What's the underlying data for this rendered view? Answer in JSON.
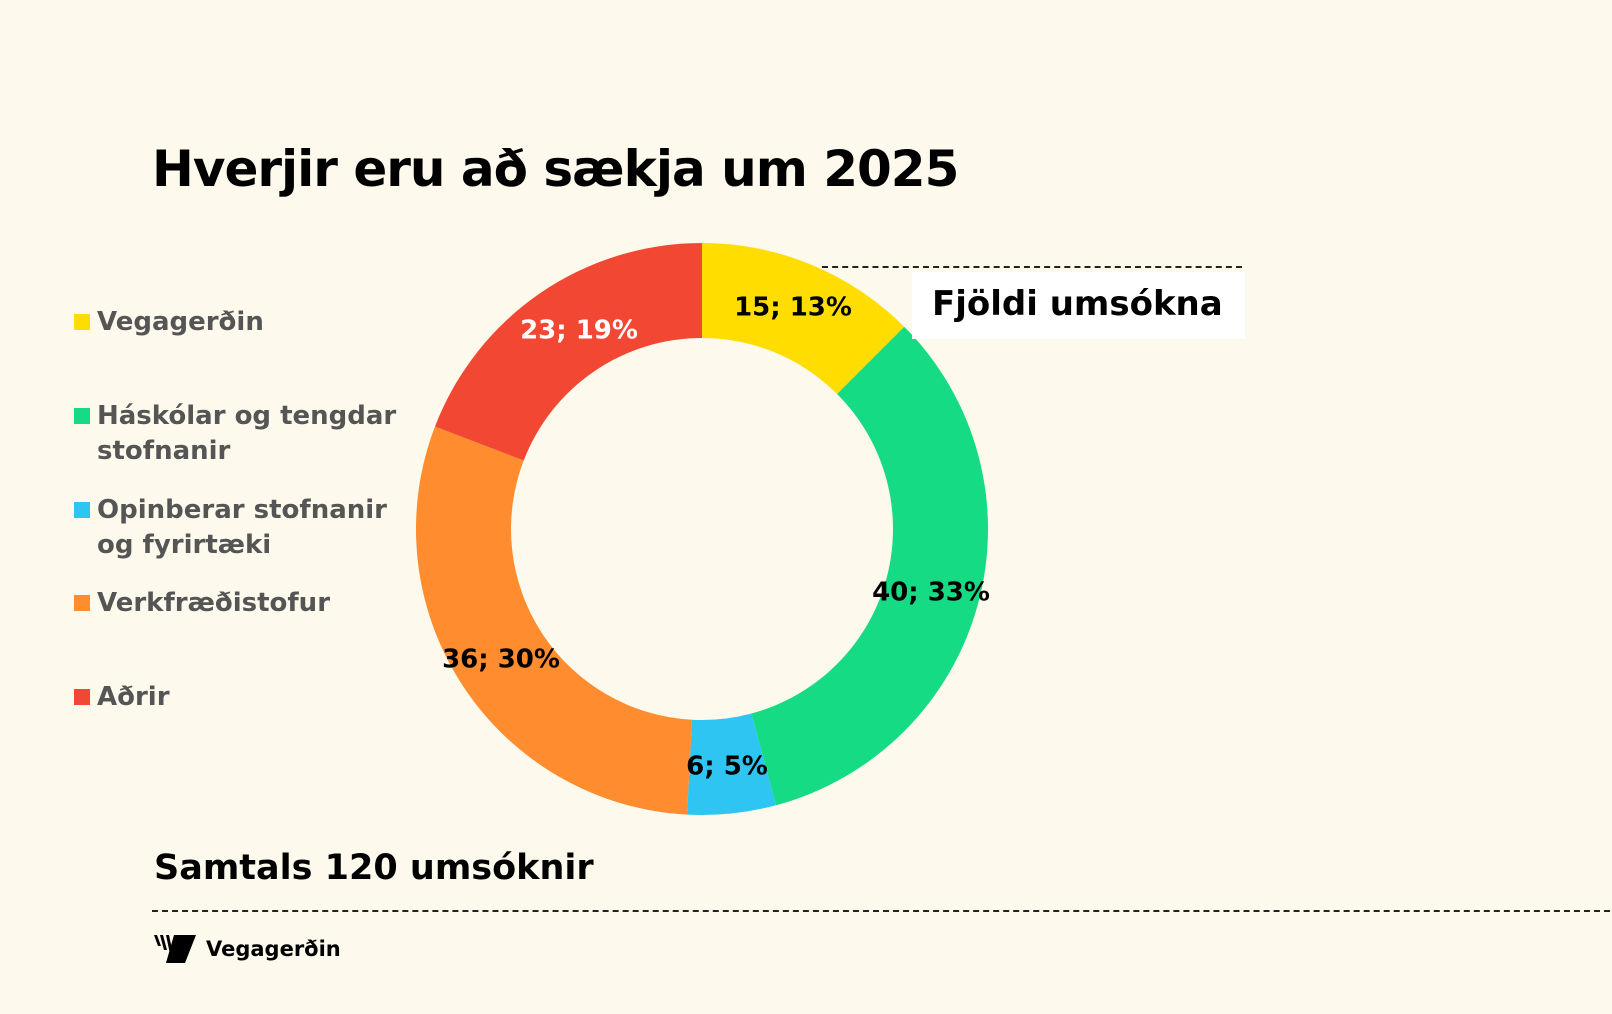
{
  "chart_data": {
    "type": "pie",
    "variant": "donut",
    "title": "Hverjir eru að sækja um 2025",
    "series_title": "Fjöldi umsókna",
    "categories": [
      "Vegagerðin",
      "Háskólar og tengdar stofnanir",
      "Opinberar stofnanir og fyrirtæki",
      "Verkfræðistofur",
      "Aðrir"
    ],
    "values": [
      15,
      40,
      6,
      36,
      23
    ],
    "data_labels": [
      "15; 13%",
      "40; 33%",
      "6; 5%",
      "36; 30%",
      "23; 19%"
    ],
    "colors": [
      "#FFDD00",
      "#15DB84",
      "#2EC5F2",
      "#FF8C2E",
      "#F24733"
    ],
    "label_colors": [
      "#000000",
      "#000000",
      "#000000",
      "#000000",
      "#FFFFFF"
    ],
    "legend_position": "left",
    "total_label": "Samtals 120 umsóknir"
  },
  "footer": {
    "logo_text": "Vegagerðin"
  }
}
